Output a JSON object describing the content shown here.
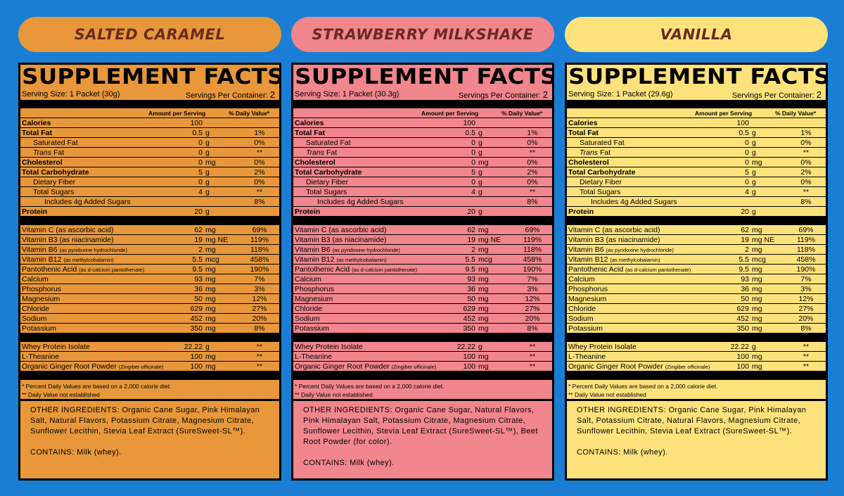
{
  "header_titles": [
    "SUPPLEMENT FACTS",
    "SUPPLEMENT FACTS",
    "SUPPLEMENT FACTS"
  ],
  "colors": {
    "background": "#1a7fd4",
    "caramel": "#e8983a",
    "strawberry": "#f1868c",
    "vanilla": "#fde27c",
    "title_text": "#6a2b20"
  },
  "panels": [
    {
      "flavor": "SALTED CARAMEL",
      "title": "SUPPLEMENT FACTS",
      "serving_size": "Serving Size: 1 Packet (30g)",
      "servings_label": "Servings Per Container:",
      "servings_value": "2",
      "col_amount": "Amount per Serving",
      "col_dv": "% Daily Value*",
      "macros": [
        {
          "name": "Calories",
          "val": "100",
          "unit": "",
          "dv": ""
        },
        {
          "name": "Total Fat",
          "val": "0.5",
          "unit": "g",
          "dv": "1%"
        },
        {
          "name": "Saturated Fat",
          "val": "0",
          "unit": "g",
          "dv": "0%"
        },
        {
          "name": "Fat",
          "val": "0",
          "unit": "g",
          "dv": "**"
        },
        {
          "name": "Cholesterol",
          "val": "0",
          "unit": "mg",
          "dv": "0%"
        },
        {
          "name": "Total Carbohydrate",
          "val": "5",
          "unit": "g",
          "dv": "2%"
        },
        {
          "name": "Dietary Fiber",
          "val": "0",
          "unit": "g",
          "dv": "0%"
        },
        {
          "name": "Total Sugars",
          "val": "4",
          "unit": "g",
          "dv": "**"
        },
        {
          "name": "Includes 4g Added Sugars",
          "val": "",
          "unit": "",
          "dv": "8%"
        },
        {
          "name": "Protein",
          "val": "20",
          "unit": "g",
          "dv": ""
        }
      ],
      "micros": [
        {
          "name": "Vitamin C (as ascorbic acid)",
          "sub": "",
          "val": "62",
          "unit": "mg",
          "dv": "69%"
        },
        {
          "name": "Vitamin B3 (as niacinamide)",
          "sub": "",
          "val": "19",
          "unit": "mg NE",
          "dv": "119%"
        },
        {
          "name": "Vitamin B6",
          "sub": "(as pyridoxine hydrochloride)",
          "val": "2",
          "unit": "mg",
          "dv": "118%"
        },
        {
          "name": "Vitamin B12",
          "sub": "(as methylcobalamin)",
          "val": "5.5",
          "unit": "mcg",
          "dv": "458%"
        },
        {
          "name": "Pantothenic Acid",
          "sub": "(as d-calcium pantothenate)",
          "val": "9.5",
          "unit": "mg",
          "dv": "190%"
        },
        {
          "name": "Calcium",
          "sub": "",
          "val": "93",
          "unit": "mg",
          "dv": "7%"
        },
        {
          "name": "Phosphorus",
          "sub": "",
          "val": "36",
          "unit": "mg",
          "dv": "3%"
        },
        {
          "name": "Magnesium",
          "sub": "",
          "val": "50",
          "unit": "mg",
          "dv": "12%"
        },
        {
          "name": "Chloride",
          "sub": "",
          "val": "629",
          "unit": "mg",
          "dv": "27%"
        },
        {
          "name": "Sodium",
          "sub": "",
          "val": "452",
          "unit": "mg",
          "dv": "20%"
        },
        {
          "name": "Potassium",
          "sub": "",
          "val": "350",
          "unit": "mg",
          "dv": "8%"
        }
      ],
      "others": [
        {
          "name": "Whey Protein Isolate",
          "sub": "",
          "val": "22.22",
          "unit": "g",
          "dv": "**"
        },
        {
          "name": "L-Theanine",
          "sub": "",
          "val": "100",
          "unit": "mg",
          "dv": "**"
        },
        {
          "name": "Organic Ginger Root Powder",
          "sub": "(Zingiber officinale)",
          "val": "100",
          "unit": "mg",
          "dv": "**"
        }
      ],
      "footnote_1": "* Percent Daily Values are based on a 2,000 calorie diet.",
      "footnote_2": "** Daily Value not established",
      "ingredients": "OTHER INGREDIENTS: Organic Cane Sugar, Pink Himalayan Salt, Natural Flavors, Potassium Citrate, Magnesium Citrate, Sunflower Lecithin, Stevia Leaf Extract (SureSweet-SL™).",
      "contains": "CONTAINS: Milk (whey)."
    },
    {
      "flavor": "STRAWBERRY MILKSHAKE",
      "title": "SUPPLEMENT FACTS",
      "serving_size": "Serving Size: 1 Packet (30.3g)",
      "servings_label": "Servings Per Container:",
      "servings_value": "2",
      "col_amount": "Amount per Serving",
      "col_dv": "% Daily Value*",
      "macros": [
        {
          "name": "Calories",
          "val": "100",
          "unit": "",
          "dv": ""
        },
        {
          "name": "Total Fat",
          "val": "0.5",
          "unit": "g",
          "dv": "1%"
        },
        {
          "name": "Saturated Fat",
          "val": "0",
          "unit": "g",
          "dv": "0%"
        },
        {
          "name": "Fat",
          "val": "0",
          "unit": "g",
          "dv": "**"
        },
        {
          "name": "Cholesterol",
          "val": "0",
          "unit": "mg",
          "dv": "0%"
        },
        {
          "name": "Total Carbohydrate",
          "val": "5",
          "unit": "g",
          "dv": "2%"
        },
        {
          "name": "Dietary Fiber",
          "val": "0",
          "unit": "g",
          "dv": "0%"
        },
        {
          "name": "Total Sugars",
          "val": "4",
          "unit": "g",
          "dv": "**"
        },
        {
          "name": "Includes 4g Added Sugars",
          "val": "",
          "unit": "",
          "dv": "8%"
        },
        {
          "name": "Protein",
          "val": "20",
          "unit": "g",
          "dv": ""
        }
      ],
      "micros": [
        {
          "name": "Vitamin C (as ascorbic acid)",
          "sub": "",
          "val": "62",
          "unit": "mg",
          "dv": "69%"
        },
        {
          "name": "Vitamin B3 (as niacinamide)",
          "sub": "",
          "val": "19",
          "unit": "mg NE",
          "dv": "119%"
        },
        {
          "name": "Vitamin B6",
          "sub": "(as pyridoxine hydrochloride)",
          "val": "2",
          "unit": "mg",
          "dv": "118%"
        },
        {
          "name": "Vitamin B12",
          "sub": "(as methylcobalamin)",
          "val": "5.5",
          "unit": "mcg",
          "dv": "458%"
        },
        {
          "name": "Pantothenic Acid",
          "sub": "(as d-calcium pantothenate)",
          "val": "9.5",
          "unit": "mg",
          "dv": "190%"
        },
        {
          "name": "Calcium",
          "sub": "",
          "val": "93",
          "unit": "mg",
          "dv": "7%"
        },
        {
          "name": "Phosphorus",
          "sub": "",
          "val": "36",
          "unit": "mg",
          "dv": "3%"
        },
        {
          "name": "Magnesium",
          "sub": "",
          "val": "50",
          "unit": "mg",
          "dv": "12%"
        },
        {
          "name": "Chloride",
          "sub": "",
          "val": "629",
          "unit": "mg",
          "dv": "27%"
        },
        {
          "name": "Sodium",
          "sub": "",
          "val": "452",
          "unit": "mg",
          "dv": "20%"
        },
        {
          "name": "Potassium",
          "sub": "",
          "val": "350",
          "unit": "mg",
          "dv": "8%"
        }
      ],
      "others": [
        {
          "name": "Whey Protein Isolate",
          "sub": "",
          "val": "22.22",
          "unit": "g",
          "dv": "**"
        },
        {
          "name": "L-Theanine",
          "sub": "",
          "val": "100",
          "unit": "mg",
          "dv": "**"
        },
        {
          "name": "Organic Ginger Root Powder",
          "sub": "(Zingiber officinale)",
          "val": "100",
          "unit": "mg",
          "dv": "**"
        }
      ],
      "footnote_1": "* Percent Daily Values are based on a 2,000 calorie diet.",
      "footnote_2": "** Daily Value not established",
      "ingredients": "OTHER INGREDIENTS:  Organic Cane Sugar, Natural Flavors, Pink Himalayan Salt, Potassium Citrate, Magnesium Citrate, Sunflower Lecithin, Stevia Leaf Extract (SureSweet-SL™), Beet Root Powder (for color).",
      "contains": "CONTAINS: Milk (whey)."
    },
    {
      "flavor": "VANILLA",
      "title": "SUPPLEMENT FACTS",
      "serving_size": "Serving Size: 1 Packet (29.6g)",
      "servings_label": "Servings Per Container:",
      "servings_value": "2",
      "col_amount": "Amount per Serving",
      "col_dv": "% Daily Value*",
      "macros": [
        {
          "name": "Calories",
          "val": "100",
          "unit": "",
          "dv": ""
        },
        {
          "name": "Total Fat",
          "val": "0.5",
          "unit": "g",
          "dv": "1%"
        },
        {
          "name": "Saturated Fat",
          "val": "0",
          "unit": "g",
          "dv": "0%"
        },
        {
          "name": "Fat",
          "val": "0",
          "unit": "g",
          "dv": "**"
        },
        {
          "name": "Cholesterol",
          "val": "0",
          "unit": "mg",
          "dv": "0%"
        },
        {
          "name": "Total Carbohydrate",
          "val": "5",
          "unit": "g",
          "dv": "2%"
        },
        {
          "name": "Dietary Fiber",
          "val": "0",
          "unit": "g",
          "dv": "0%"
        },
        {
          "name": "Total Sugars",
          "val": "4",
          "unit": "g",
          "dv": "**"
        },
        {
          "name": "Includes 4g Added Sugars",
          "val": "",
          "unit": "",
          "dv": "8%"
        },
        {
          "name": "Protein",
          "val": "20",
          "unit": "g",
          "dv": ""
        }
      ],
      "micros": [
        {
          "name": "Vitamin C (as ascorbic acid)",
          "sub": "",
          "val": "62",
          "unit": "mg",
          "dv": "69%"
        },
        {
          "name": "Vitamin B3 (as niacinamide)",
          "sub": "",
          "val": "19",
          "unit": "mg NE",
          "dv": "119%"
        },
        {
          "name": "Vitamin B6",
          "sub": "(as pyridoxine hydrochloride)",
          "val": "2",
          "unit": "mg",
          "dv": "118%"
        },
        {
          "name": "Vitamin B12",
          "sub": "(as methylcobalamin)",
          "val": "5.5",
          "unit": "mcg",
          "dv": "458%"
        },
        {
          "name": "Pantothenic Acid",
          "sub": "(as d-calcium pantothenate)",
          "val": "9.5",
          "unit": "mg",
          "dv": "190%"
        },
        {
          "name": "Calcium",
          "sub": "",
          "val": "93",
          "unit": "mg",
          "dv": "7%"
        },
        {
          "name": "Phosphorus",
          "sub": "",
          "val": "36",
          "unit": "mg",
          "dv": "3%"
        },
        {
          "name": "Magnesium",
          "sub": "",
          "val": "50",
          "unit": "mg",
          "dv": "12%"
        },
        {
          "name": "Chloride",
          "sub": "",
          "val": "629",
          "unit": "mg",
          "dv": "27%"
        },
        {
          "name": "Sodium",
          "sub": "",
          "val": "452",
          "unit": "mg",
          "dv": "20%"
        },
        {
          "name": "Potassium",
          "sub": "",
          "val": "350",
          "unit": "mg",
          "dv": "8%"
        }
      ],
      "others": [
        {
          "name": "Whey Protein Isolate",
          "sub": "",
          "val": "22.22",
          "unit": "g",
          "dv": "**"
        },
        {
          "name": "L-Theanine",
          "sub": "",
          "val": "100",
          "unit": "mg",
          "dv": "**"
        },
        {
          "name": "Organic Ginger Root Powder",
          "sub": "(Zingiber officinale)",
          "val": "100",
          "unit": "mg",
          "dv": "**"
        }
      ],
      "footnote_1": "* Percent Daily Values are based on a 2,000 calorie diet.",
      "footnote_2": "** Daily Value not established",
      "ingredients": "OTHER INGREDIENTS: Organic Cane Sugar, Pink Himalayan Salt, Potassium Citrate, Natural Flavors, Magnesium Citrate, Sunflower Lecithin, Stevia Leaf Extract (SureSweet-SL™).",
      "contains": "CONTAINS: Milk (whey)."
    }
  ],
  "trans_prefix": "Trans"
}
